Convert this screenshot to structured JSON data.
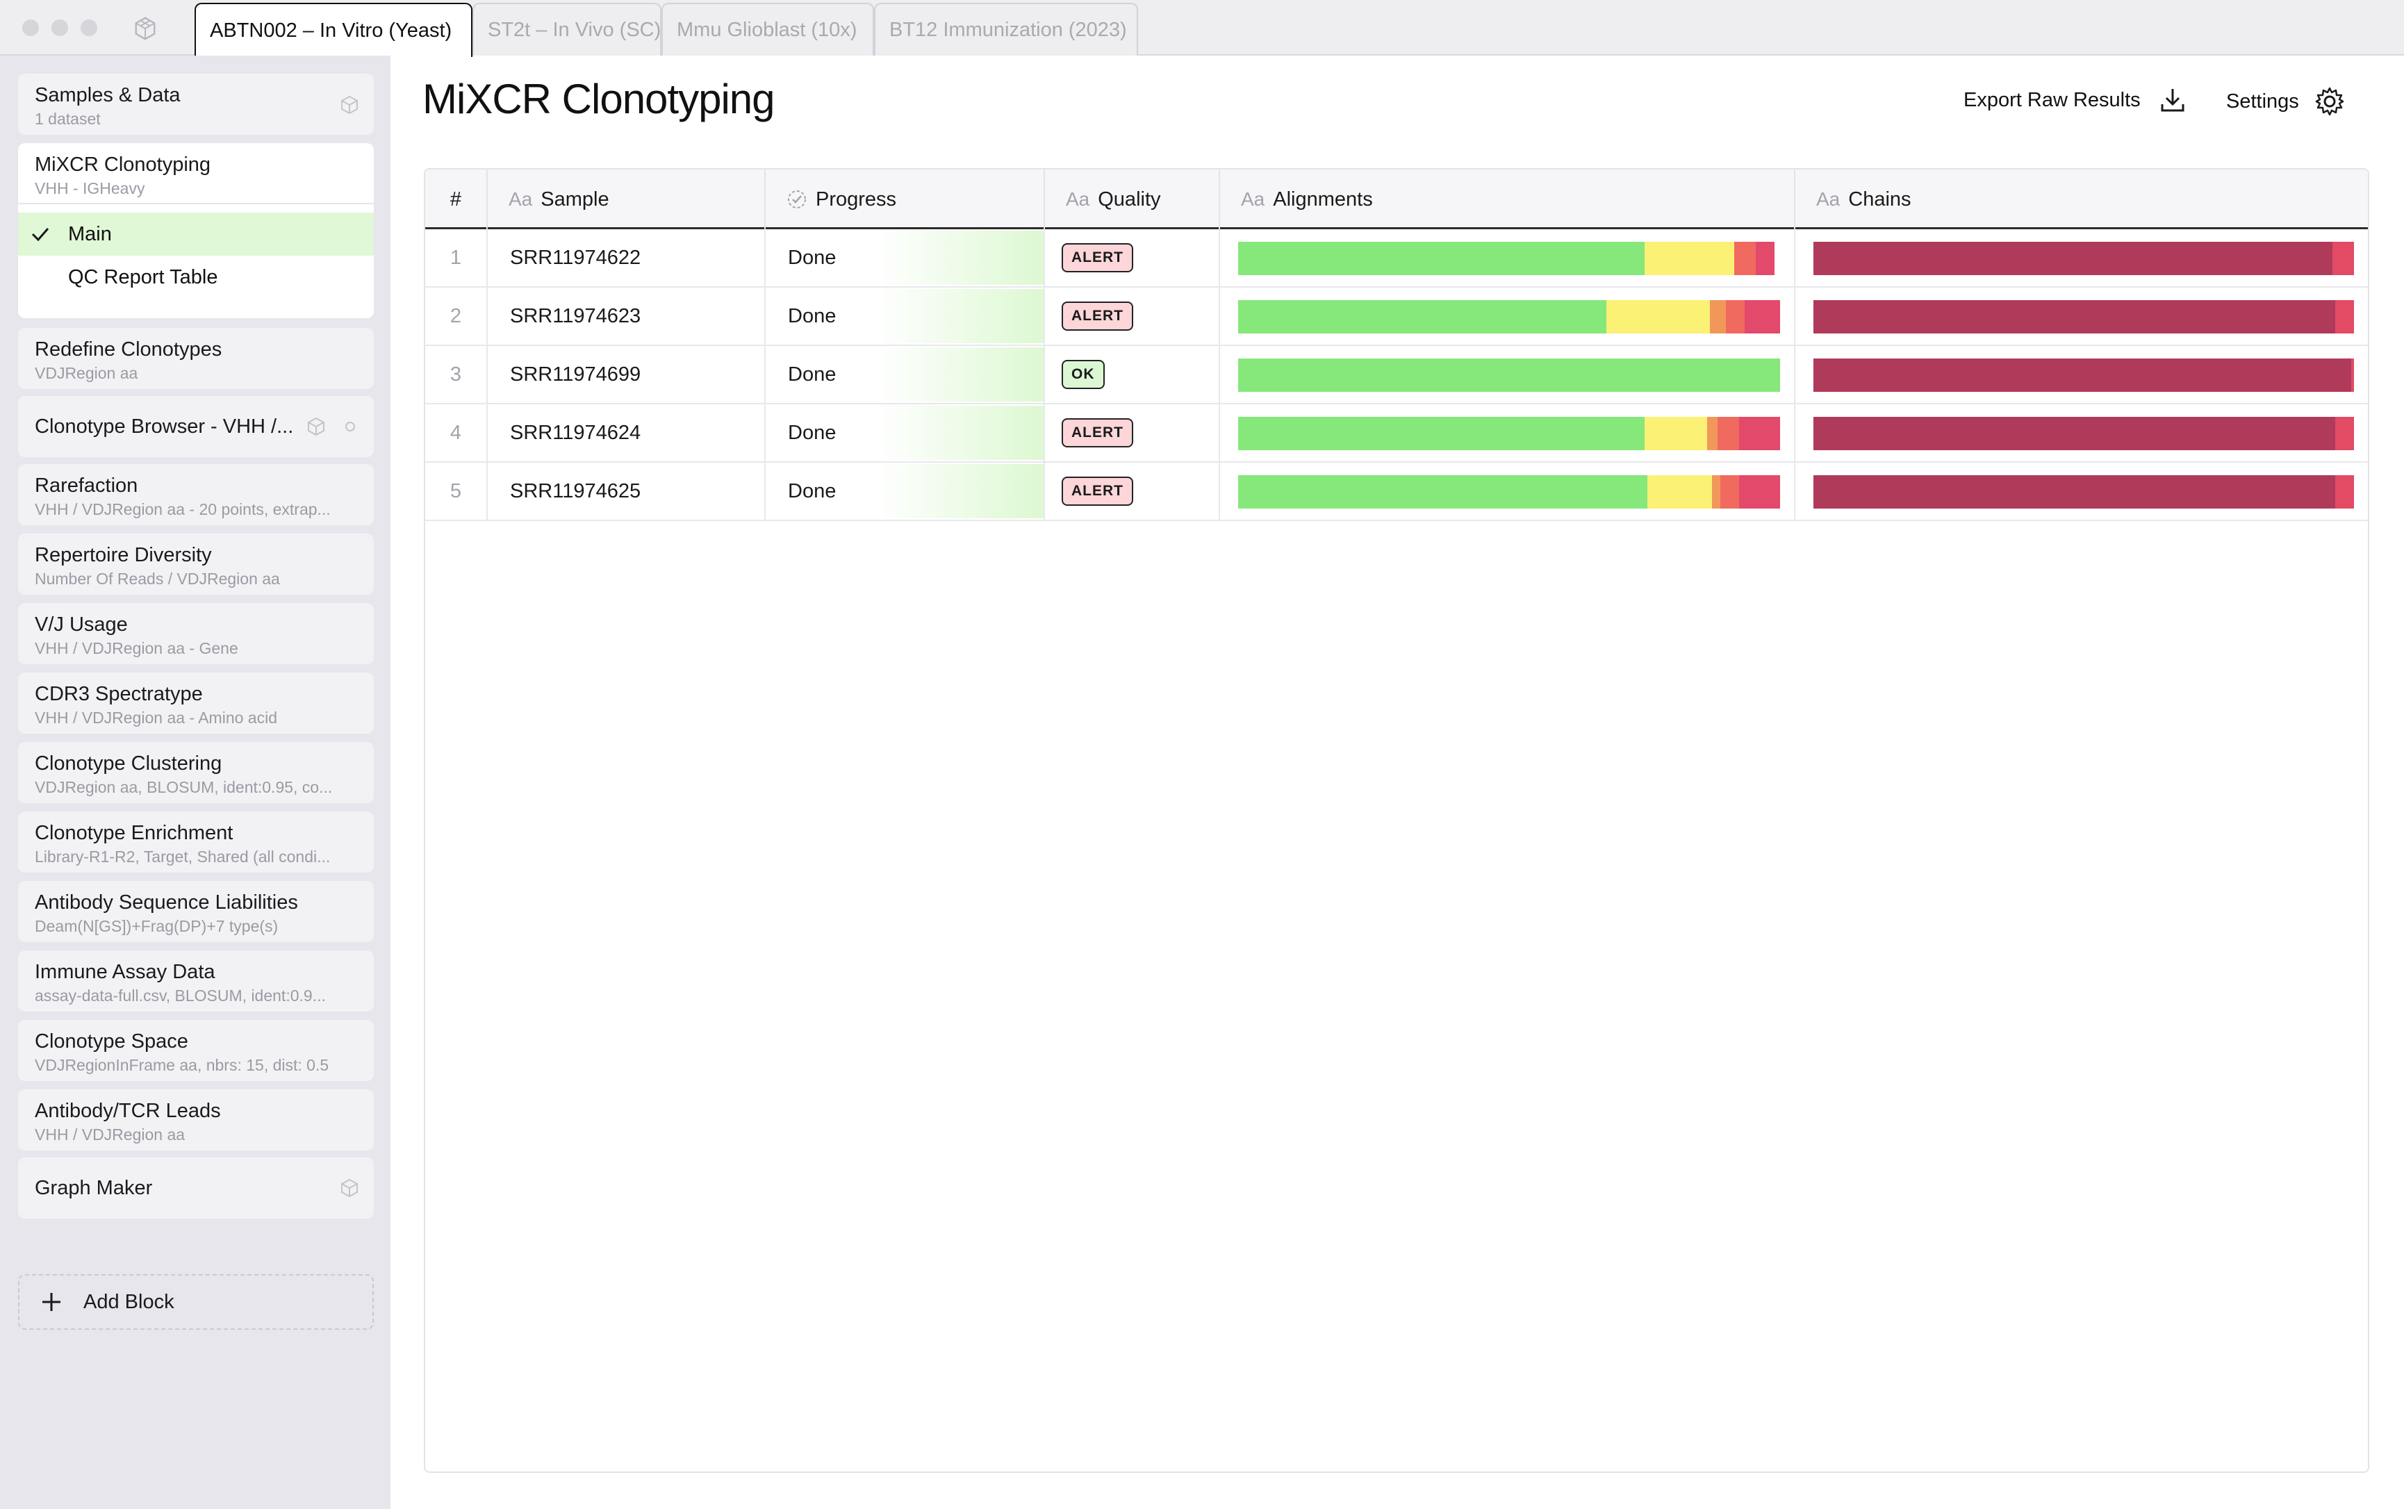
{
  "tabs": [
    {
      "label": "ABTN002 – In Vitro (Yeast)",
      "active": true
    },
    {
      "label": "ST2t – In Vivo (SC)",
      "active": false
    },
    {
      "label": "Mmu Glioblast (10x)",
      "active": false
    },
    {
      "label": "BT12 Immunization (2023)",
      "active": false
    }
  ],
  "sidebar": {
    "blocks": [
      {
        "title": "Samples & Data",
        "subtitle": "1 dataset"
      },
      {
        "title": "MiXCR Clonotyping",
        "subtitle": "VHH - IGHeavy"
      },
      {
        "title": "Redefine Clonotypes",
        "subtitle": "VDJRegion aa"
      },
      {
        "title": "Clonotype Browser - VHH /...",
        "subtitle": ""
      },
      {
        "title": "Rarefaction",
        "subtitle": "VHH / VDJRegion aa - 20 points, extrap..."
      },
      {
        "title": "Repertoire Diversity",
        "subtitle": "Number Of Reads / VDJRegion aa"
      },
      {
        "title": "V/J Usage",
        "subtitle": "VHH / VDJRegion aa - Gene"
      },
      {
        "title": "CDR3 Spectratype",
        "subtitle": "VHH / VDJRegion aa - Amino acid"
      },
      {
        "title": "Clonotype Clustering",
        "subtitle": "VDJRegion aa, BLOSUM, ident:0.95, co..."
      },
      {
        "title": "Clonotype Enrichment",
        "subtitle": "Library-R1-R2, Target, Shared (all condi..."
      },
      {
        "title": "Antibody Sequence Liabilities",
        "subtitle": "Deam(N[GS])+Frag(DP)+7 type(s)"
      },
      {
        "title": "Immune Assay Data",
        "subtitle": "assay-data-full.csv, BLOSUM, ident:0.9..."
      },
      {
        "title": "Clonotype Space",
        "subtitle": "VDJRegionInFrame aa, nbrs: 15, dist: 0.5"
      },
      {
        "title": "Antibody/TCR Leads",
        "subtitle": "VHH / VDJRegion aa"
      },
      {
        "title": "Graph Maker",
        "subtitle": ""
      }
    ],
    "sub_items": [
      {
        "label": "Main",
        "selected": true
      },
      {
        "label": "QC Report Table",
        "selected": false
      }
    ],
    "add_block_label": "Add Block"
  },
  "main": {
    "title": "MiXCR Clonotyping",
    "export_label": "Export Raw Results",
    "settings_label": "Settings"
  },
  "table": {
    "headers": {
      "num": "#",
      "sample": "Sample",
      "progress": "Progress",
      "quality": "Quality",
      "alignments": "Alignments",
      "chains": "Chains",
      "aa": "Aa"
    },
    "rows": [
      {
        "num": "1",
        "sample": "SRR11974622",
        "progress": "Done",
        "quality": "ALERT",
        "quality_status": "alert",
        "alignments": [
          0.75,
          0.165,
          0.04,
          0.035
        ],
        "chains": [
          0.96,
          0.04
        ]
      },
      {
        "num": "2",
        "sample": "SRR11974623",
        "progress": "Done",
        "quality": "ALERT",
        "quality_status": "alert",
        "alignments": [
          0.68,
          0.19,
          0.03,
          0.035,
          0.065
        ],
        "chains": [
          0.965,
          0.035
        ]
      },
      {
        "num": "3",
        "sample": "SRR11974699",
        "progress": "Done",
        "quality": "OK",
        "quality_status": "ok",
        "alignments": [
          1.0
        ],
        "chains": [
          0.995,
          0.005
        ]
      },
      {
        "num": "4",
        "sample": "SRR11974624",
        "progress": "Done",
        "quality": "ALERT",
        "quality_status": "alert",
        "alignments": [
          0.75,
          0.115,
          0.02,
          0.04,
          0.075
        ],
        "chains": [
          0.965,
          0.035
        ]
      },
      {
        "num": "5",
        "sample": "SRR11974625",
        "progress": "Done",
        "quality": "ALERT",
        "quality_status": "alert",
        "alignments": [
          0.755,
          0.12,
          0.015,
          0.035,
          0.075
        ],
        "chains": [
          0.965,
          0.035
        ]
      }
    ]
  },
  "colors": {
    "align_segments": [
      "#86e77b",
      "#fbf175",
      "#f1975a",
      "#f06a5f",
      "#e3496a"
    ],
    "chain_segments": [
      "#b03a5a",
      "#e34a64"
    ],
    "selected_bg": "#e0f8d6"
  }
}
